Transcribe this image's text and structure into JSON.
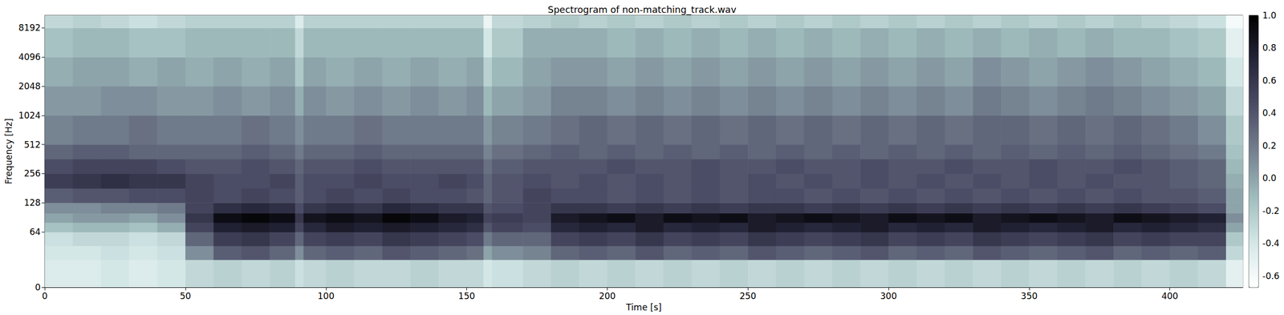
{
  "chart_data": {
    "type": "heatmap",
    "title": "Spectrogram of non-matching_track.wav",
    "x_label": "Time [s]",
    "y_label": "Frequency [Hz]",
    "xlim": [
      0,
      426
    ],
    "xticks": [
      0,
      50,
      100,
      150,
      200,
      250,
      300,
      350,
      400
    ],
    "ylim": [
      0,
      11025
    ],
    "yticks": [
      0,
      64,
      128,
      256,
      512,
      1024,
      2048,
      4096,
      8192
    ],
    "log": "y",
    "grid": false,
    "x_edges": [
      0,
      10,
      20,
      30,
      40,
      50,
      60,
      70,
      80,
      89,
      92,
      100,
      110,
      120,
      130,
      140,
      150,
      156,
      159,
      170,
      180,
      190,
      200,
      210,
      220,
      230,
      240,
      250,
      260,
      270,
      280,
      290,
      300,
      310,
      320,
      330,
      340,
      350,
      360,
      370,
      380,
      390,
      400,
      410,
      420,
      426
    ],
    "y_edges": [
      0,
      32,
      48,
      64,
      80,
      100,
      128,
      181,
      256,
      362,
      512,
      1024,
      2048,
      4096,
      8192,
      11025
    ],
    "cells": [
      [
        -0.45,
        -0.45,
        -0.4,
        -0.45,
        -0.4,
        -0.3,
        -0.25,
        -0.3,
        -0.25,
        -0.35,
        -0.3,
        -0.25,
        -0.3,
        -0.3,
        -0.25,
        -0.3,
        -0.3,
        -0.4,
        -0.35,
        -0.3,
        -0.25,
        -0.3,
        -0.25,
        -0.3,
        -0.25,
        -0.3,
        -0.25,
        -0.3,
        -0.25,
        -0.3,
        -0.25,
        -0.3,
        -0.25,
        -0.3,
        -0.25,
        -0.3,
        -0.25,
        -0.3,
        -0.25,
        -0.3,
        -0.25,
        -0.3,
        -0.25,
        -0.3,
        -0.5
      ],
      [
        -0.4,
        -0.4,
        -0.35,
        -0.4,
        -0.35,
        0.1,
        0.35,
        0.4,
        0.3,
        0.1,
        0.3,
        0.35,
        0.3,
        0.4,
        0.35,
        0.3,
        0.25,
        0.0,
        0.1,
        0.15,
        0.3,
        0.35,
        0.3,
        0.4,
        0.3,
        0.35,
        0.3,
        0.4,
        0.35,
        0.3,
        0.35,
        0.4,
        0.3,
        0.35,
        0.3,
        0.4,
        0.35,
        0.3,
        0.35,
        0.4,
        0.3,
        0.35,
        0.3,
        0.35,
        -0.3
      ],
      [
        -0.35,
        -0.3,
        -0.3,
        -0.35,
        -0.3,
        0.3,
        0.55,
        0.6,
        0.5,
        0.3,
        0.5,
        0.55,
        0.5,
        0.6,
        0.55,
        0.5,
        0.45,
        0.2,
        0.3,
        0.3,
        0.5,
        0.55,
        0.5,
        0.6,
        0.5,
        0.55,
        0.5,
        0.6,
        0.55,
        0.5,
        0.55,
        0.6,
        0.5,
        0.55,
        0.5,
        0.6,
        0.55,
        0.5,
        0.55,
        0.6,
        0.5,
        0.55,
        0.5,
        0.5,
        -0.2
      ],
      [
        -0.15,
        -0.1,
        -0.1,
        -0.15,
        -0.05,
        0.5,
        0.75,
        0.8,
        0.75,
        0.5,
        0.7,
        0.8,
        0.75,
        0.8,
        0.75,
        0.7,
        0.65,
        0.4,
        0.5,
        0.45,
        0.7,
        0.75,
        0.7,
        0.8,
        0.7,
        0.75,
        0.7,
        0.8,
        0.75,
        0.7,
        0.75,
        0.8,
        0.7,
        0.75,
        0.7,
        0.8,
        0.75,
        0.7,
        0.75,
        0.8,
        0.7,
        0.75,
        0.7,
        0.65,
        0.0
      ],
      [
        0.0,
        0.05,
        0.05,
        0.0,
        0.1,
        0.6,
        0.9,
        0.95,
        0.9,
        0.6,
        0.85,
        0.9,
        0.85,
        0.95,
        0.9,
        0.8,
        0.75,
        0.5,
        0.55,
        0.5,
        0.8,
        0.85,
        0.9,
        0.8,
        0.9,
        0.85,
        0.9,
        0.8,
        0.85,
        0.9,
        0.85,
        0.8,
        0.9,
        0.85,
        0.9,
        0.8,
        0.85,
        0.9,
        0.85,
        0.8,
        0.9,
        0.85,
        0.8,
        0.75,
        0.1
      ],
      [
        0.1,
        0.1,
        0.15,
        0.15,
        0.2,
        0.5,
        0.65,
        0.7,
        0.65,
        0.45,
        0.6,
        0.65,
        0.6,
        0.7,
        0.65,
        0.6,
        0.6,
        0.4,
        0.45,
        0.5,
        0.6,
        0.6,
        0.55,
        0.6,
        0.55,
        0.6,
        0.55,
        0.6,
        0.6,
        0.55,
        0.6,
        0.55,
        0.6,
        0.55,
        0.6,
        0.55,
        0.6,
        0.55,
        0.6,
        0.55,
        0.6,
        0.55,
        0.5,
        0.45,
        0.0
      ],
      [
        0.35,
        0.4,
        0.4,
        0.45,
        0.45,
        0.5,
        0.45,
        0.5,
        0.45,
        0.35,
        0.45,
        0.5,
        0.45,
        0.5,
        0.45,
        0.45,
        0.4,
        0.3,
        0.4,
        0.5,
        0.45,
        0.45,
        0.4,
        0.45,
        0.4,
        0.45,
        0.4,
        0.45,
        0.45,
        0.4,
        0.45,
        0.4,
        0.45,
        0.4,
        0.45,
        0.4,
        0.45,
        0.4,
        0.45,
        0.4,
        0.45,
        0.4,
        0.4,
        0.35,
        0.0
      ],
      [
        0.55,
        0.6,
        0.65,
        0.6,
        0.6,
        0.5,
        0.45,
        0.45,
        0.5,
        0.35,
        0.45,
        0.45,
        0.5,
        0.45,
        0.45,
        0.5,
        0.45,
        0.3,
        0.4,
        0.45,
        0.4,
        0.45,
        0.4,
        0.45,
        0.4,
        0.45,
        0.4,
        0.45,
        0.4,
        0.45,
        0.4,
        0.45,
        0.4,
        0.45,
        0.4,
        0.45,
        0.4,
        0.45,
        0.4,
        0.45,
        0.4,
        0.4,
        0.35,
        0.3,
        -0.05
      ],
      [
        0.45,
        0.5,
        0.5,
        0.5,
        0.45,
        0.4,
        0.4,
        0.45,
        0.4,
        0.3,
        0.4,
        0.4,
        0.45,
        0.4,
        0.4,
        0.4,
        0.4,
        0.25,
        0.35,
        0.4,
        0.4,
        0.4,
        0.45,
        0.4,
        0.4,
        0.45,
        0.4,
        0.4,
        0.45,
        0.4,
        0.4,
        0.45,
        0.4,
        0.4,
        0.45,
        0.4,
        0.4,
        0.45,
        0.4,
        0.4,
        0.45,
        0.4,
        0.35,
        0.3,
        -0.1
      ],
      [
        0.3,
        0.35,
        0.35,
        0.3,
        0.3,
        0.3,
        0.3,
        0.35,
        0.3,
        0.2,
        0.3,
        0.3,
        0.35,
        0.3,
        0.3,
        0.3,
        0.3,
        0.15,
        0.25,
        0.3,
        0.35,
        0.3,
        0.35,
        0.3,
        0.35,
        0.3,
        0.35,
        0.3,
        0.35,
        0.3,
        0.35,
        0.3,
        0.35,
        0.3,
        0.35,
        0.3,
        0.35,
        0.3,
        0.35,
        0.3,
        0.35,
        0.3,
        0.25,
        0.2,
        -0.15
      ],
      [
        0.15,
        0.2,
        0.2,
        0.25,
        0.2,
        0.2,
        0.2,
        0.25,
        0.2,
        0.1,
        0.2,
        0.2,
        0.25,
        0.2,
        0.2,
        0.2,
        0.2,
        0.05,
        0.15,
        0.2,
        0.25,
        0.3,
        0.25,
        0.3,
        0.25,
        0.3,
        0.25,
        0.3,
        0.25,
        0.3,
        0.25,
        0.3,
        0.25,
        0.3,
        0.25,
        0.3,
        0.3,
        0.25,
        0.3,
        0.25,
        0.3,
        0.25,
        0.2,
        0.1,
        -0.2
      ],
      [
        0.05,
        0.05,
        0.1,
        0.1,
        0.05,
        0.05,
        0.1,
        0.05,
        0.1,
        -0.05,
        0.1,
        0.05,
        0.1,
        0.05,
        0.1,
        0.05,
        0.1,
        -0.1,
        0.0,
        0.05,
        0.15,
        0.15,
        0.1,
        0.15,
        0.1,
        0.15,
        0.1,
        0.15,
        0.1,
        0.15,
        0.1,
        0.15,
        0.1,
        0.15,
        0.1,
        0.2,
        0.15,
        0.1,
        0.15,
        0.2,
        0.15,
        0.1,
        0.05,
        0.0,
        -0.3
      ],
      [
        -0.05,
        0.0,
        0.0,
        -0.05,
        0.0,
        -0.05,
        0.0,
        -0.05,
        0.0,
        -0.2,
        0.0,
        -0.05,
        0.0,
        -0.05,
        0.0,
        -0.05,
        0.0,
        -0.25,
        -0.1,
        0.0,
        0.05,
        0.05,
        0.0,
        0.05,
        0.0,
        0.05,
        0.0,
        0.05,
        0.0,
        0.05,
        0.0,
        0.05,
        0.0,
        0.05,
        0.0,
        0.1,
        0.05,
        0.0,
        0.05,
        0.1,
        0.05,
        0.0,
        -0.05,
        -0.1,
        -0.4
      ],
      [
        -0.15,
        -0.1,
        -0.1,
        -0.15,
        -0.15,
        -0.1,
        -0.1,
        -0.1,
        -0.1,
        -0.3,
        -0.1,
        -0.1,
        -0.1,
        -0.1,
        -0.1,
        -0.1,
        -0.1,
        -0.4,
        -0.2,
        -0.05,
        -0.05,
        -0.05,
        -0.1,
        -0.05,
        -0.1,
        -0.05,
        -0.1,
        -0.05,
        -0.1,
        -0.05,
        -0.1,
        -0.05,
        -0.1,
        -0.05,
        -0.1,
        -0.05,
        -0.1,
        -0.05,
        -0.1,
        -0.05,
        -0.1,
        -0.1,
        -0.15,
        -0.2,
        -0.5
      ],
      [
        -0.3,
        -0.25,
        -0.3,
        -0.35,
        -0.3,
        -0.25,
        -0.25,
        -0.25,
        -0.25,
        -0.45,
        -0.25,
        -0.25,
        -0.25,
        -0.25,
        -0.25,
        -0.25,
        -0.25,
        -0.55,
        -0.3,
        -0.25,
        -0.2,
        -0.25,
        -0.2,
        -0.25,
        -0.2,
        -0.25,
        -0.2,
        -0.25,
        -0.2,
        -0.25,
        -0.2,
        -0.25,
        -0.2,
        -0.25,
        -0.2,
        -0.25,
        -0.2,
        -0.25,
        -0.2,
        -0.25,
        -0.2,
        -0.25,
        -0.3,
        -0.35,
        -0.6
      ]
    ],
    "colorbar": {
      "range": [
        -0.67,
        1.0
      ],
      "ticks": [
        {
          "value": -0.6,
          "label": "-0.6"
        },
        {
          "value": -0.4,
          "label": "-0.4"
        },
        {
          "value": -0.2,
          "label": "-0.2"
        },
        {
          "value": 0.0,
          "label": "0.0"
        },
        {
          "value": 0.2,
          "label": "0.2"
        },
        {
          "value": 0.4,
          "label": "0.4"
        },
        {
          "value": 0.6,
          "label": "0.6"
        },
        {
          "value": 0.8,
          "label": "0.8"
        },
        {
          "value": 1.0,
          "label": "1.0"
        }
      ]
    }
  }
}
